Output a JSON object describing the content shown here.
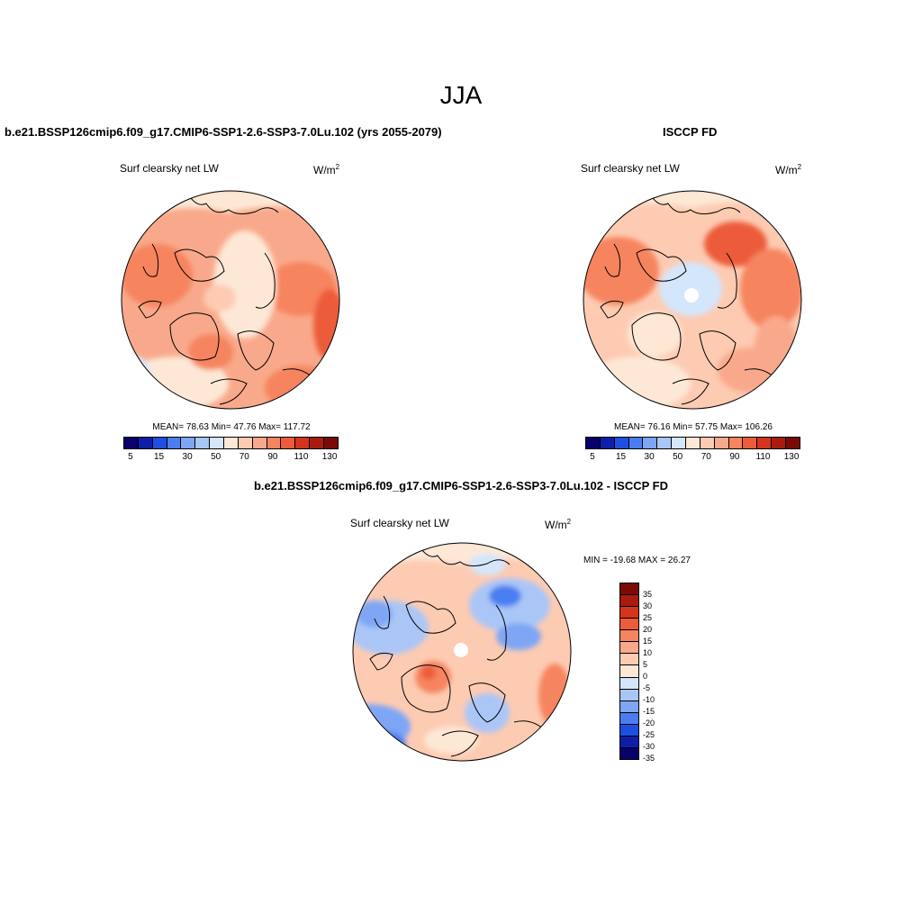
{
  "figure": {
    "title": "JJA"
  },
  "panels": {
    "top_left": {
      "title": "b.e21.BSSP126cmip6.f09_g17.CMIP6-SSP1-2.6-SSP3-7.0Lu.102 (yrs 2055-2079)",
      "variable": "Surf clearsky net LW",
      "units_base": "W/m",
      "units_exp": "2",
      "stats": "MEAN=  78.63  Min=  47.76  Max= 117.72"
    },
    "top_right": {
      "title": "ISCCP FD",
      "variable": "Surf clearsky net LW",
      "units_base": "W/m",
      "units_exp": "2",
      "stats": "MEAN=  76.16  Min=  57.75  Max= 106.26"
    },
    "bottom": {
      "title": "b.e21.BSSP126cmip6.f09_g17.CMIP6-SSP1-2.6-SSP3-7.0Lu.102 - ISCCP FD",
      "variable": "Surf clearsky net LW",
      "units_base": "W/m",
      "units_exp": "2",
      "stats": "MIN = -19.68 MAX =  26.27"
    }
  },
  "colorbars": {
    "top": {
      "colors": [
        "#08006b",
        "#0d1fa8",
        "#1f4fe0",
        "#4a7ef0",
        "#7ea6f5",
        "#aac6f7",
        "#d4e6fb",
        "#fde8d6",
        "#fdcbb2",
        "#f9a98b",
        "#f6845f",
        "#ec5c3a",
        "#d5341d",
        "#ab1a0e",
        "#7a0a05"
      ],
      "labels": [
        "5",
        "15",
        "30",
        "50",
        "70",
        "90",
        "110",
        "130"
      ]
    },
    "diff": {
      "colors": [
        "#7a0a05",
        "#ab1a0e",
        "#d5341d",
        "#ec5c3a",
        "#f6845f",
        "#f9a98b",
        "#fdcbb2",
        "#fde8d6",
        "#d4e6fb",
        "#aac6f7",
        "#7ea6f5",
        "#4a7ef0",
        "#1f4fe0",
        "#0d1fa8",
        "#08006b"
      ],
      "labels": [
        "35",
        "30",
        "25",
        "20",
        "15",
        "10",
        "5",
        "0",
        "-5",
        "-10",
        "-15",
        "-20",
        "-25",
        "-30",
        "-35"
      ]
    }
  }
}
